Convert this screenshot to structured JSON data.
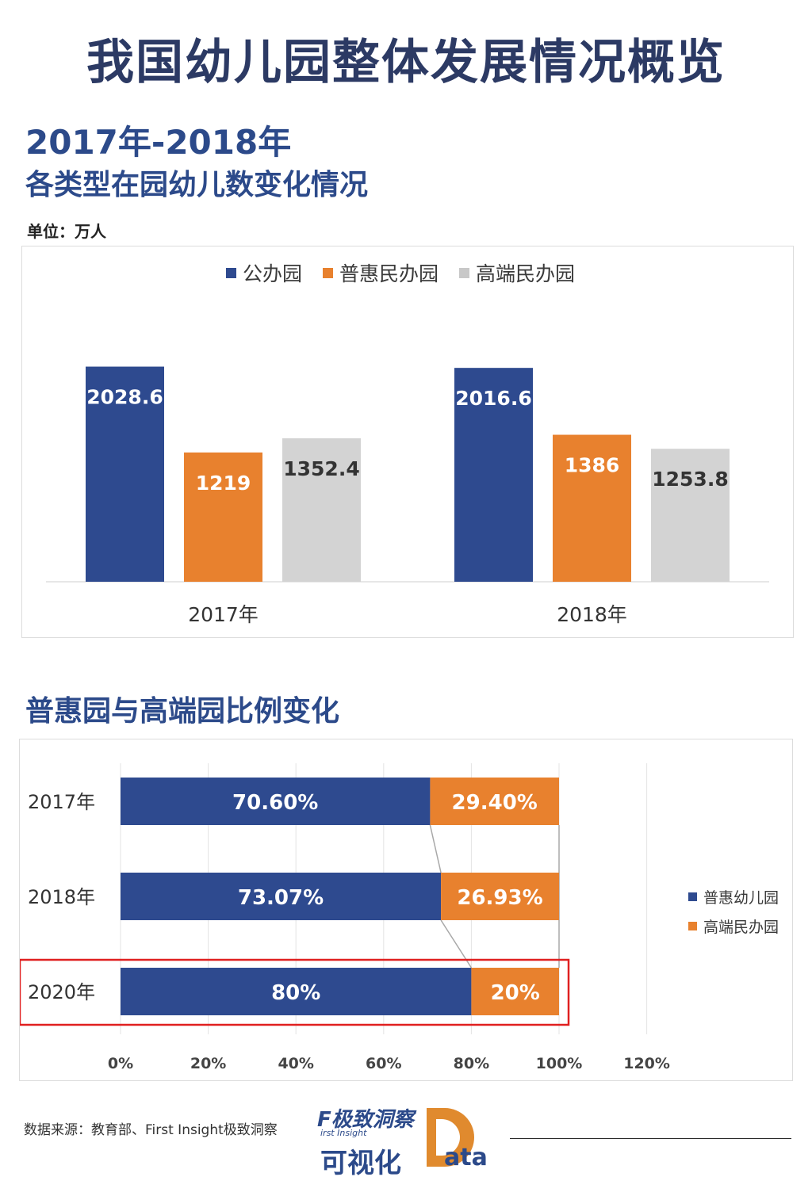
{
  "title": "我国幼儿园整体发展情况概览",
  "subtitle_years": "2017年-2018年",
  "subtitle_desc": "各类型在园幼儿数变化情况",
  "unit": "单位：万人",
  "section2_title": "普惠园与高端园比例变化",
  "source": "数据来源：教育部、First Insight极致洞察",
  "logo": {
    "top": "极致洞察",
    "f_letter": "F",
    "en": "irst Insight",
    "bottom": "可视化",
    "data_suffix": "ata"
  },
  "colors": {
    "blue": "#2e4a8f",
    "orange": "#e8812e",
    "gray": "#d3d3d3",
    "highlight": "#e02020"
  },
  "chart_data": [
    {
      "type": "bar",
      "categories": [
        "2017年",
        "2018年"
      ],
      "series": [
        {
          "name": "公办园",
          "values": [
            2028.6,
            2016.6
          ],
          "color": "#2e4a8f"
        },
        {
          "name": "普惠民办园",
          "values": [
            1219,
            1386
          ],
          "color": "#e8812e"
        },
        {
          "name": "高端民办园",
          "values": [
            1352.4,
            1253.8
          ],
          "color": "#d3d3d3"
        }
      ],
      "value_labels": [
        [
          "2028.6",
          "1219",
          "1352.4"
        ],
        [
          "2016.6",
          "1386",
          "1253.8"
        ]
      ],
      "ylim": [
        0,
        2100
      ],
      "legend": "top"
    },
    {
      "type": "bar",
      "orientation": "horizontal",
      "stacked": true,
      "categories": [
        "2017年",
        "2018年",
        "2020年"
      ],
      "series": [
        {
          "name": "普惠幼儿园",
          "values": [
            70.6,
            73.07,
            80
          ],
          "labels": [
            "70.60%",
            "73.07%",
            "80%"
          ],
          "color": "#2e4a8f"
        },
        {
          "name": "高端民办园",
          "values": [
            29.4,
            26.93,
            20
          ],
          "labels": [
            "29.40%",
            "26.93%",
            "20%"
          ],
          "color": "#e8812e"
        }
      ],
      "xlim": [
        0,
        120
      ],
      "xticks": [
        "0%",
        "20%",
        "40%",
        "60%",
        "80%",
        "100%",
        "120%"
      ],
      "highlighted_category": "2020年",
      "legend": "right"
    }
  ]
}
